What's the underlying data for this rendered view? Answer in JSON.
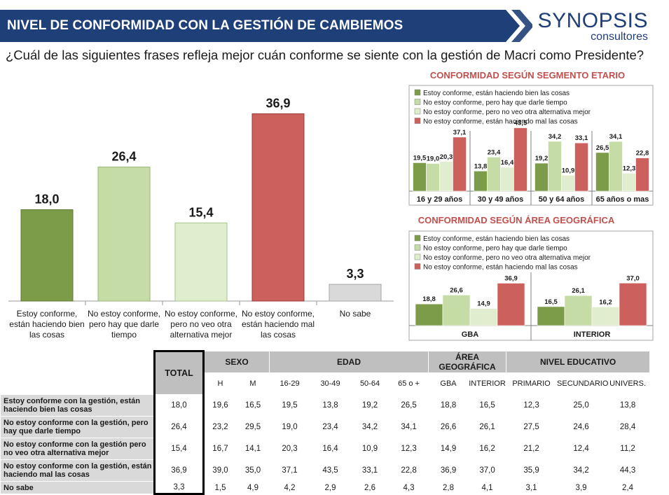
{
  "header": {
    "title": "NIVEL DE CONFORMIDAD CON LA GESTIÓN DE CAMBIEMOS"
  },
  "logo": {
    "main": "SYNOPSIS",
    "sub": "consultores"
  },
  "question": "¿Cuál de las siguientes frases refleja mejor cuán conforme se siente con la gestión de Macri como Presidente?",
  "colors": {
    "green_dark": "#7c9c4a",
    "green_light": "#c6dca6",
    "green_pale": "#e1edcf",
    "red": "#cc605c",
    "gray": "#d9d9d9",
    "navy": "#1f3f78",
    "accent_red": "#c0504d"
  },
  "chart_data": [
    {
      "type": "bar",
      "title": "",
      "categories": [
        "Estoy conforme, están haciendo bien las cosas",
        "No estoy conforme, pero hay que darle tiempo",
        "No estoy conforme, pero no veo otra alternativa mejor",
        "No estoy conforme, están haciendo mal las cosas",
        "No sabe"
      ],
      "category_lines": [
        [
          "Estoy conforme,",
          "están haciendo bien",
          "las cosas"
        ],
        [
          "No estoy conforme,",
          "pero hay que darle",
          "tiempo"
        ],
        [
          "No estoy conforme,",
          "pero no veo otra",
          "alternativa mejor"
        ],
        [
          "No estoy conforme,",
          "están haciendo mal",
          "las cosas"
        ],
        [
          "No sabe"
        ]
      ],
      "values": [
        18.0,
        26.4,
        15.4,
        36.9,
        3.3
      ],
      "labels": [
        "18,0",
        "26,4",
        "15,4",
        "36,9",
        "3,3"
      ],
      "ylim": [
        0,
        40
      ]
    },
    {
      "type": "bar",
      "title": "CONFORMIDAD SEGÚN SEGMENTO ETARIO",
      "legend_position": "top-left",
      "categories": [
        "16 y 29 años",
        "30 y 49 años",
        "50 y 64 años",
        "65 años o mas"
      ],
      "series": [
        {
          "name": "Estoy conforme, están haciendo bien las cosas",
          "values": [
            19.5,
            13.8,
            19.2,
            26.5
          ],
          "labels": [
            "19,5",
            "13,8",
            "19,2",
            "26,5"
          ]
        },
        {
          "name": "No estoy conforme, pero hay que darle tiempo",
          "values": [
            19.0,
            23.4,
            34.2,
            34.1
          ],
          "labels": [
            "19,0",
            "23,4",
            "34,2",
            "34,1"
          ]
        },
        {
          "name": "No estoy conforme, pero no veo otra alternativa mejor",
          "values": [
            20.3,
            16.4,
            10.9,
            12.3
          ],
          "labels": [
            "20,3",
            "16,4",
            "10,9",
            "12,3"
          ]
        },
        {
          "name": "No estoy conforme, están haciendo mal las cosas",
          "values": [
            37.1,
            43.5,
            33.1,
            22.8
          ],
          "labels": [
            "37,1",
            "43,5",
            "33,1",
            "22,8"
          ]
        }
      ],
      "ylim": [
        0,
        50
      ]
    },
    {
      "type": "bar",
      "title": "CONFORMIDAD SEGÚN ÁREA GEOGRÁFICA",
      "legend_position": "top-left",
      "categories": [
        "GBA",
        "INTERIOR"
      ],
      "series": [
        {
          "name": "Estoy conforme, están haciendo bien las cosas",
          "values": [
            18.8,
            16.5
          ],
          "labels": [
            "18,8",
            "16,5"
          ]
        },
        {
          "name": "No estoy conforme, pero hay que darle tiempo",
          "values": [
            26.6,
            26.1
          ],
          "labels": [
            "26,6",
            "26,1"
          ]
        },
        {
          "name": "No estoy conforme, pero no veo otra alternativa mejor",
          "values": [
            14.9,
            16.2
          ],
          "labels": [
            "14,9",
            "16,2"
          ]
        },
        {
          "name": "No estoy conforme, están haciendo mal las cosas",
          "values": [
            36.9,
            37.0
          ],
          "labels": [
            "36,9",
            "37,0"
          ]
        }
      ],
      "ylim": [
        0,
        50
      ]
    },
    {
      "type": "table",
      "total_label": "TOTAL",
      "groups": [
        {
          "name": "SEXO",
          "columns": [
            "H",
            "M"
          ]
        },
        {
          "name": "EDAD",
          "columns": [
            "16-29",
            "30-49",
            "50-64",
            "65 o +"
          ]
        },
        {
          "name": "ÁREA GEOGRÁFICA",
          "columns": [
            "GBA",
            "INTERIOR"
          ]
        },
        {
          "name": "NIVEL EDUCATIVO",
          "columns": [
            "PRIMARIO",
            "SECUNDARIO",
            "UNIVERS."
          ]
        }
      ],
      "rows": [
        {
          "label": "Estoy conforme con la gestión, están haciendo bien las cosas",
          "total": "18,0",
          "values": [
            "19,6",
            "16,5",
            "19,5",
            "13,8",
            "19,2",
            "26,5",
            "18,8",
            "16,5",
            "12,3",
            "25,0",
            "13,8"
          ]
        },
        {
          "label": "No estoy conforme con la gestión, pero hay que darle tiempo",
          "total": "26,4",
          "values": [
            "23,2",
            "29,5",
            "19,0",
            "23,4",
            "34,2",
            "34,1",
            "26,6",
            "26,1",
            "27,5",
            "24,6",
            "28,4"
          ]
        },
        {
          "label": "No estoy conforme con la gestión pero no veo otra alternativa mejor",
          "total": "15,4",
          "values": [
            "16,7",
            "14,1",
            "20,3",
            "16,4",
            "10,9",
            "12,3",
            "14,9",
            "16,2",
            "21,2",
            "12,4",
            "11,2"
          ]
        },
        {
          "label": "No estoy conforme con la gestión, están haciendo mal las cosas",
          "total": "36,9",
          "values": [
            "39,0",
            "35,0",
            "37,1",
            "43,5",
            "33,1",
            "22,8",
            "36,9",
            "37,0",
            "35,9",
            "34,2",
            "44,3"
          ]
        },
        {
          "label": "No sabe",
          "total": "3,3",
          "values": [
            "1,5",
            "4,9",
            "4,2",
            "2,9",
            "2,6",
            "4,3",
            "2,8",
            "4,1",
            "3,1",
            "3,9",
            "2,4"
          ]
        }
      ]
    }
  ]
}
